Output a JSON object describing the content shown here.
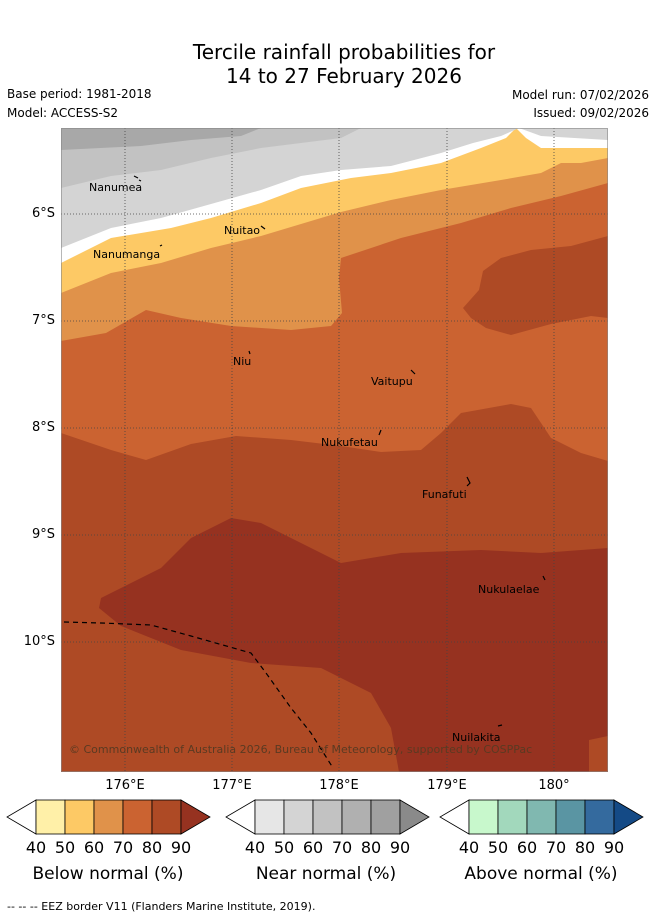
{
  "header": {
    "title_line1": "Tercile rainfall probabilities for",
    "title_line2": "14 to 27 February 2026",
    "base_period": "Base period: 1981-2018",
    "model": "Model: ACCESS-S2",
    "model_run": "Model run: 07/02/2026",
    "issued": "Issued: 09/02/2026"
  },
  "map": {
    "lat_labels": [
      "6°S",
      "7°S",
      "8°S",
      "9°S",
      "10°S"
    ],
    "lon_labels": [
      "176°E",
      "177°E",
      "178°E",
      "179°E",
      "180°"
    ],
    "places": [
      "Nanumea",
      "Nuitao",
      "Nanumanga",
      "Niu",
      "Vaitupu",
      "Nukufetau",
      "Funafuti",
      "Nukulaelae",
      "Nuilakita"
    ],
    "copyright": "© Commonwealth of Australia 2026, Bureau of Meteorology, supported by COSPPac"
  },
  "colorbars": [
    {
      "label": "Below normal (%)",
      "ticks": [
        "40",
        "50",
        "60",
        "70",
        "80",
        "90"
      ],
      "colors": [
        "#ffffff",
        "#fff0a8",
        "#fdc965",
        "#e0924a",
        "#cb6331",
        "#ae4a25",
        "#963220"
      ]
    },
    {
      "label": "Near normal (%)",
      "ticks": [
        "40",
        "50",
        "60",
        "70",
        "80",
        "90"
      ],
      "colors": [
        "#ffffff",
        "#e6e6e6",
        "#d4d4d4",
        "#c2c2c2",
        "#b0b0b0",
        "#a0a0a0",
        "#8a8a8a"
      ]
    },
    {
      "label": "Above normal (%)",
      "ticks": [
        "40",
        "50",
        "60",
        "70",
        "80",
        "90"
      ],
      "colors": [
        "#ffffff",
        "#c8f8cc",
        "#a2d8bc",
        "#80b8b0",
        "#5a95a3",
        "#346a9e",
        "#144a86"
      ]
    }
  ],
  "footer": {
    "legend_text": "--  --  -- EEZ border V11 (Flanders Marine Institute, 2019)."
  }
}
